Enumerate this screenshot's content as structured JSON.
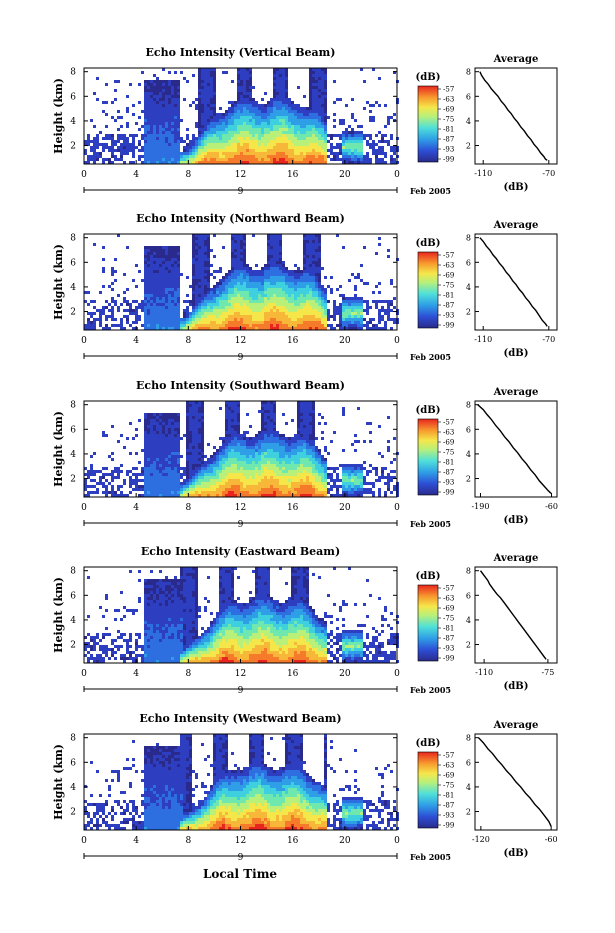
{
  "x_axis_label": "Local Time",
  "chart_data": [
    {
      "type": "heatmap",
      "title": "Echo Intensity (Vertical Beam)",
      "xlabel": "",
      "ylabel": "Height (km)",
      "x_ticks": [
        "0",
        "4",
        "8",
        "12",
        "16",
        "20",
        "0"
      ],
      "y_ticks": [
        "2",
        "4",
        "6",
        "8"
      ],
      "xlim": [
        0,
        24
      ],
      "ylim": [
        0.5,
        8.3
      ],
      "date_marker": "9",
      "date_label": "Feb 2005",
      "colorbar": {
        "label": "(dB)",
        "ticks": [
          "-57",
          "-63",
          "-69",
          "-75",
          "-81",
          "-87",
          "-93",
          "-99"
        ]
      },
      "profile": {
        "title": "Average",
        "xlabel": "(dB)",
        "x_ticks": [
          "-110",
          "-70"
        ],
        "xlim": [
          -115,
          -65
        ],
        "y_ticks": [
          "2",
          "4",
          "6",
          "8"
        ],
        "x": [
          -112,
          -111,
          -109,
          -107,
          -105,
          -103,
          -101,
          -99,
          -97,
          -95,
          -93,
          -91,
          -89,
          -87,
          -85,
          -83,
          -81,
          -79,
          -77,
          -75,
          -73,
          -72,
          -71
        ],
        "y": [
          8.0,
          7.7,
          7.3,
          7.0,
          6.6,
          6.3,
          6.0,
          5.6,
          5.3,
          4.9,
          4.6,
          4.2,
          3.9,
          3.5,
          3.2,
          2.8,
          2.5,
          2.1,
          1.8,
          1.4,
          1.1,
          0.9,
          0.8
        ]
      }
    },
    {
      "type": "heatmap",
      "title": "Echo Intensity (Northward Beam)",
      "xlabel": "",
      "ylabel": "Height (km)",
      "x_ticks": [
        "0",
        "4",
        "8",
        "12",
        "16",
        "20",
        "0"
      ],
      "y_ticks": [
        "2",
        "4",
        "6",
        "8"
      ],
      "xlim": [
        0,
        24
      ],
      "ylim": [
        0.5,
        8.3
      ],
      "date_marker": "9",
      "date_label": "Feb 2005",
      "colorbar": {
        "label": "(dB)",
        "ticks": [
          "-57",
          "-63",
          "-69",
          "-75",
          "-81",
          "-87",
          "-93",
          "-99"
        ]
      },
      "profile": {
        "title": "Average",
        "xlabel": "(dB)",
        "x_ticks": [
          "-110",
          "-70"
        ],
        "xlim": [
          -115,
          -65
        ],
        "y_ticks": [
          "2",
          "4",
          "6",
          "8"
        ],
        "x": [
          -112,
          -110,
          -108,
          -106,
          -104,
          -102,
          -100,
          -98,
          -96,
          -94,
          -92,
          -90,
          -88,
          -86,
          -84,
          -82,
          -80,
          -78,
          -76,
          -74,
          -72,
          -71
        ],
        "y": [
          8.0,
          7.7,
          7.3,
          7.0,
          6.6,
          6.3,
          5.9,
          5.6,
          5.2,
          4.9,
          4.5,
          4.2,
          3.8,
          3.5,
          3.1,
          2.8,
          2.4,
          2.1,
          1.7,
          1.3,
          1.0,
          0.8
        ]
      }
    },
    {
      "type": "heatmap",
      "title": "Echo Intensity (Southward Beam)",
      "xlabel": "",
      "ylabel": "Height (km)",
      "x_ticks": [
        "0",
        "4",
        "8",
        "12",
        "16",
        "20",
        "0"
      ],
      "y_ticks": [
        "2",
        "4",
        "6",
        "8"
      ],
      "xlim": [
        0,
        24
      ],
      "ylim": [
        0.5,
        8.3
      ],
      "date_marker": "9",
      "date_label": "Feb 2005",
      "colorbar": {
        "label": "(dB)",
        "ticks": [
          "-57",
          "-63",
          "-69",
          "-75",
          "-81",
          "-87",
          "-93",
          "-99"
        ]
      },
      "profile": {
        "title": "Average",
        "xlabel": "(dB)",
        "x_ticks": [
          "-190",
          "-60"
        ],
        "xlim": [
          -200,
          -50
        ],
        "y_ticks": [
          "2",
          "4",
          "6",
          "8"
        ],
        "x": [
          -195,
          -185,
          -178,
          -170,
          -162,
          -154,
          -146,
          -138,
          -130,
          -122,
          -114,
          -106,
          -98,
          -90,
          -82,
          -74,
          -66,
          -61
        ],
        "y": [
          8.0,
          7.6,
          7.2,
          6.8,
          6.3,
          5.9,
          5.4,
          5.0,
          4.5,
          4.1,
          3.6,
          3.2,
          2.7,
          2.3,
          1.8,
          1.4,
          1.0,
          0.8
        ]
      }
    },
    {
      "type": "heatmap",
      "title": "Echo Intensity (Eastward Beam)",
      "xlabel": "",
      "ylabel": "Height (km)",
      "x_ticks": [
        "0",
        "4",
        "8",
        "12",
        "16",
        "20",
        "0"
      ],
      "y_ticks": [
        "2",
        "4",
        "6",
        "8"
      ],
      "xlim": [
        0,
        24
      ],
      "ylim": [
        0.5,
        8.3
      ],
      "date_marker": "9",
      "date_label": "Feb 2005",
      "colorbar": {
        "label": "(dB)",
        "ticks": [
          "-57",
          "-63",
          "-69",
          "-75",
          "-81",
          "-87",
          "-93",
          "-99"
        ]
      },
      "profile": {
        "title": "Average",
        "xlabel": "(dB)",
        "x_ticks": [
          "-110",
          "-75"
        ],
        "xlim": [
          -115,
          -70
        ],
        "y_ticks": [
          "2",
          "4",
          "6",
          "8"
        ],
        "x": [
          -112,
          -110,
          -108,
          -107,
          -105,
          -103,
          -101,
          -99,
          -97,
          -95,
          -93,
          -91,
          -89,
          -87,
          -85,
          -83,
          -81,
          -79,
          -77,
          -76
        ],
        "y": [
          8.0,
          7.6,
          7.2,
          6.9,
          6.5,
          6.1,
          5.8,
          5.4,
          5.0,
          4.6,
          4.2,
          3.8,
          3.4,
          3.0,
          2.6,
          2.2,
          1.8,
          1.4,
          1.0,
          0.8
        ]
      }
    },
    {
      "type": "heatmap",
      "title": "Echo Intensity (Westward Beam)",
      "xlabel": "Local Time",
      "ylabel": "Height (km)",
      "x_ticks": [
        "0",
        "4",
        "8",
        "12",
        "16",
        "20",
        "0"
      ],
      "y_ticks": [
        "2",
        "4",
        "6",
        "8"
      ],
      "xlim": [
        0,
        24
      ],
      "ylim": [
        0.5,
        8.3
      ],
      "date_marker": "9",
      "date_label": "Feb 2005",
      "colorbar": {
        "label": "(dB)",
        "ticks": [
          "-57",
          "-63",
          "-69",
          "-75",
          "-81",
          "-87",
          "-93",
          "-99"
        ]
      },
      "profile": {
        "title": "Average",
        "xlabel": "(dB)",
        "x_ticks": [
          "-120",
          "-60"
        ],
        "xlim": [
          -125,
          -55
        ],
        "y_ticks": [
          "2",
          "4",
          "6",
          "8"
        ],
        "x": [
          -122,
          -118,
          -114,
          -110,
          -106,
          -102,
          -98,
          -94,
          -90,
          -86,
          -82,
          -78,
          -74,
          -70,
          -66,
          -62,
          -60
        ],
        "y": [
          8.0,
          7.6,
          7.1,
          6.7,
          6.2,
          5.8,
          5.3,
          4.9,
          4.4,
          4.0,
          3.5,
          3.1,
          2.6,
          2.2,
          1.7,
          1.2,
          0.8
        ]
      }
    }
  ]
}
